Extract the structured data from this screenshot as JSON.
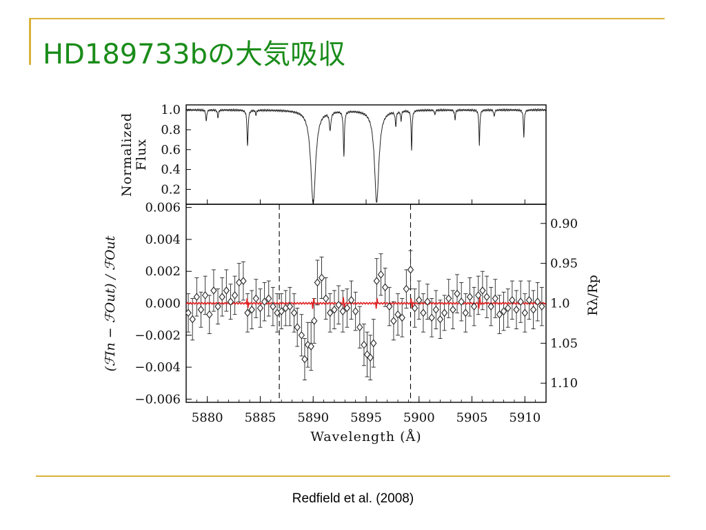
{
  "slide": {
    "title": "HD189733bの大気吸収",
    "citation": "Redfield et al. (2008)",
    "accent_color": "#d9b23a",
    "title_color": "#1a8c1a"
  },
  "chart_data": [
    {
      "type": "line",
      "panel": "top",
      "ylabel_line1": "Normalized",
      "ylabel_line2": "Flux",
      "xlim": [
        5878,
        5912
      ],
      "ylim": [
        0.05,
        1.05
      ],
      "yticks": [
        "0.2",
        "0.4",
        "0.6",
        "0.8",
        "1.0"
      ],
      "yticks_values": [
        0.2,
        0.4,
        0.6,
        0.8,
        1.0
      ],
      "continuum": 1.0,
      "absorption_lines": [
        {
          "center": 5890.0,
          "depth": 0.94,
          "width": 0.55
        },
        {
          "center": 5896.0,
          "depth": 0.93,
          "width": 0.5
        },
        {
          "center": 5883.8,
          "depth": 0.36,
          "width": 0.12
        },
        {
          "center": 5892.9,
          "depth": 0.45,
          "width": 0.12
        },
        {
          "center": 5899.3,
          "depth": 0.41,
          "width": 0.1
        },
        {
          "center": 5905.7,
          "depth": 0.36,
          "width": 0.1
        },
        {
          "center": 5909.9,
          "depth": 0.27,
          "width": 0.1
        },
        {
          "center": 5879.9,
          "depth": 0.12,
          "width": 0.1
        },
        {
          "center": 5881.0,
          "depth": 0.08,
          "width": 0.1
        },
        {
          "center": 5884.6,
          "depth": 0.05,
          "width": 0.1
        },
        {
          "center": 5891.6,
          "depth": 0.18,
          "width": 0.18
        },
        {
          "center": 5897.8,
          "depth": 0.15,
          "width": 0.12
        },
        {
          "center": 5898.3,
          "depth": 0.1,
          "width": 0.1
        },
        {
          "center": 5901.5,
          "depth": 0.05,
          "width": 0.1
        },
        {
          "center": 5903.4,
          "depth": 0.1,
          "width": 0.1
        },
        {
          "center": 5907.1,
          "depth": 0.07,
          "width": 0.1
        }
      ]
    },
    {
      "type": "scatter",
      "panel": "bottom",
      "xlabel": "Wavelength (Å)",
      "ylabel_left": "(ℱIn − ℱOut) / ℱOut",
      "ylabel_right": "Rλ/Rp",
      "xlim": [
        5878,
        5912
      ],
      "ylim": [
        -0.0062,
        0.0062
      ],
      "xticks": [
        "5880",
        "5885",
        "5890",
        "5895",
        "5900",
        "5905",
        "5910"
      ],
      "xticks_values": [
        5880,
        5885,
        5890,
        5895,
        5900,
        5905,
        5910
      ],
      "yticks": [
        "0.006",
        "0.004",
        "0.002",
        "0.000",
        "−0.002",
        "−0.004",
        "−0.006"
      ],
      "yticks_values": [
        0.006,
        0.004,
        0.002,
        0.0,
        -0.002,
        -0.004,
        -0.006
      ],
      "right_ticks": [
        "0.90",
        "0.95",
        "1.0",
        "1.05",
        "1.10"
      ],
      "right_ticks_values": [
        0.005,
        0.0025,
        0.0,
        -0.0025,
        -0.005
      ],
      "dashed_lines_x": [
        5886.8,
        5899.2
      ],
      "model_color": "#e02020",
      "points": [
        {
          "x": 5878.2,
          "y": -0.0006,
          "e": 0.0012
        },
        {
          "x": 5878.6,
          "y": -0.001,
          "e": 0.0013
        },
        {
          "x": 5879.0,
          "y": 0.0004,
          "e": 0.0012
        },
        {
          "x": 5879.4,
          "y": -0.0004,
          "e": 0.0011
        },
        {
          "x": 5879.8,
          "y": 0.0005,
          "e": 0.0012
        },
        {
          "x": 5880.2,
          "y": -0.0007,
          "e": 0.0012
        },
        {
          "x": 5880.6,
          "y": 0.0008,
          "e": 0.0013
        },
        {
          "x": 5881.0,
          "y": -0.0002,
          "e": 0.0011
        },
        {
          "x": 5881.4,
          "y": 0.0004,
          "e": 0.0012
        },
        {
          "x": 5881.8,
          "y": 0.0008,
          "e": 0.0013
        },
        {
          "x": 5882.2,
          "y": 0.0001,
          "e": 0.0011
        },
        {
          "x": 5882.6,
          "y": 0.0005,
          "e": 0.0012
        },
        {
          "x": 5883.0,
          "y": 0.0013,
          "e": 0.0012
        },
        {
          "x": 5883.4,
          "y": 0.0014,
          "e": 0.0012
        },
        {
          "x": 5883.8,
          "y": -0.0006,
          "e": 0.0012
        },
        {
          "x": 5884.2,
          "y": -0.0004,
          "e": 0.0012
        },
        {
          "x": 5884.6,
          "y": 0.0003,
          "e": 0.0012
        },
        {
          "x": 5885.0,
          "y": -0.0003,
          "e": 0.0012
        },
        {
          "x": 5885.4,
          "y": 0.0001,
          "e": 0.0012
        },
        {
          "x": 5885.8,
          "y": 0.0003,
          "e": 0.0011
        },
        {
          "x": 5886.2,
          "y": -0.0002,
          "e": 0.0012
        },
        {
          "x": 5886.6,
          "y": -0.0006,
          "e": 0.0012
        },
        {
          "x": 5887.0,
          "y": -0.0005,
          "e": 0.0011
        },
        {
          "x": 5887.4,
          "y": -0.0003,
          "e": 0.0011
        },
        {
          "x": 5887.8,
          "y": -0.0002,
          "e": 0.0012
        },
        {
          "x": 5888.2,
          "y": -0.0006,
          "e": 0.0012
        },
        {
          "x": 5888.5,
          "y": -0.0015,
          "e": 0.0012
        },
        {
          "x": 5888.9,
          "y": -0.002,
          "e": 0.0013
        },
        {
          "x": 5889.2,
          "y": -0.0035,
          "e": 0.0013
        },
        {
          "x": 5889.5,
          "y": -0.0026,
          "e": 0.0014
        },
        {
          "x": 5889.8,
          "y": -0.0027,
          "e": 0.0015
        },
        {
          "x": 5890.1,
          "y": -0.0011,
          "e": 0.0014
        },
        {
          "x": 5890.4,
          "y": 0.0013,
          "e": 0.0014
        },
        {
          "x": 5890.8,
          "y": 0.0016,
          "e": 0.0013
        },
        {
          "x": 5891.2,
          "y": 0.0003,
          "e": 0.0013
        },
        {
          "x": 5891.6,
          "y": -0.0006,
          "e": 0.0012
        },
        {
          "x": 5892.0,
          "y": -0.0004,
          "e": 0.0012
        },
        {
          "x": 5892.4,
          "y": -0.0001,
          "e": 0.0012
        },
        {
          "x": 5892.8,
          "y": -0.0005,
          "e": 0.0013
        },
        {
          "x": 5893.2,
          "y": -0.0003,
          "e": 0.0012
        },
        {
          "x": 5893.6,
          "y": 0.0002,
          "e": 0.0012
        },
        {
          "x": 5894.0,
          "y": -0.0005,
          "e": 0.0012
        },
        {
          "x": 5894.4,
          "y": -0.0015,
          "e": 0.0013
        },
        {
          "x": 5894.8,
          "y": -0.0026,
          "e": 0.0013
        },
        {
          "x": 5895.1,
          "y": -0.0032,
          "e": 0.0014
        },
        {
          "x": 5895.4,
          "y": -0.0034,
          "e": 0.0014
        },
        {
          "x": 5895.7,
          "y": -0.0025,
          "e": 0.0015
        },
        {
          "x": 5896.0,
          "y": 0.0014,
          "e": 0.0014
        },
        {
          "x": 5896.4,
          "y": 0.0018,
          "e": 0.0013
        },
        {
          "x": 5896.8,
          "y": 0.001,
          "e": 0.0012
        },
        {
          "x": 5897.2,
          "y": -0.0002,
          "e": 0.0012
        },
        {
          "x": 5897.6,
          "y": -0.0011,
          "e": 0.0012
        },
        {
          "x": 5898.0,
          "y": -0.0007,
          "e": 0.0013
        },
        {
          "x": 5898.4,
          "y": -0.0009,
          "e": 0.0012
        },
        {
          "x": 5898.8,
          "y": 0.0009,
          "e": 0.0012
        },
        {
          "x": 5899.2,
          "y": 0.0021,
          "e": 0.0012
        },
        {
          "x": 5899.6,
          "y": -0.0003,
          "e": 0.0012
        },
        {
          "x": 5900.0,
          "y": 0.0002,
          "e": 0.0012
        },
        {
          "x": 5900.4,
          "y": -0.0006,
          "e": 0.0012
        },
        {
          "x": 5900.8,
          "y": 0.0001,
          "e": 0.0011
        },
        {
          "x": 5901.2,
          "y": -0.0009,
          "e": 0.0012
        },
        {
          "x": 5901.6,
          "y": -0.0004,
          "e": 0.0012
        },
        {
          "x": 5902.0,
          "y": -0.001,
          "e": 0.0012
        },
        {
          "x": 5902.4,
          "y": -0.0006,
          "e": 0.0011
        },
        {
          "x": 5902.8,
          "y": 0.0003,
          "e": 0.0012
        },
        {
          "x": 5903.2,
          "y": -0.0004,
          "e": 0.0012
        },
        {
          "x": 5903.6,
          "y": 0.0006,
          "e": 0.0012
        },
        {
          "x": 5904.0,
          "y": 0.0001,
          "e": 0.0012
        },
        {
          "x": 5904.4,
          "y": -0.0006,
          "e": 0.0012
        },
        {
          "x": 5904.8,
          "y": 0.0004,
          "e": 0.0012
        },
        {
          "x": 5905.2,
          "y": -0.0002,
          "e": 0.0012
        },
        {
          "x": 5905.6,
          "y": 0.0005,
          "e": 0.0012
        },
        {
          "x": 5906.0,
          "y": 0.0008,
          "e": 0.0012
        },
        {
          "x": 5906.4,
          "y": 0.0004,
          "e": 0.0013
        },
        {
          "x": 5906.8,
          "y": -0.0002,
          "e": 0.0012
        },
        {
          "x": 5907.2,
          "y": 0.0003,
          "e": 0.0012
        },
        {
          "x": 5907.6,
          "y": -0.0007,
          "e": 0.0012
        },
        {
          "x": 5908.0,
          "y": -0.0005,
          "e": 0.0012
        },
        {
          "x": 5908.4,
          "y": -0.0003,
          "e": 0.0012
        },
        {
          "x": 5908.8,
          "y": 0.0002,
          "e": 0.0012
        },
        {
          "x": 5909.2,
          "y": -0.0004,
          "e": 0.0012
        },
        {
          "x": 5909.6,
          "y": 0.0001,
          "e": 0.0013
        },
        {
          "x": 5910.0,
          "y": -0.0006,
          "e": 0.0012
        },
        {
          "x": 5910.4,
          "y": 0.0002,
          "e": 0.0012
        },
        {
          "x": 5910.8,
          "y": -0.0004,
          "e": 0.0012
        },
        {
          "x": 5911.2,
          "y": 0.0001,
          "e": 0.0012
        },
        {
          "x": 5911.6,
          "y": -0.0002,
          "e": 0.0012
        }
      ]
    }
  ]
}
